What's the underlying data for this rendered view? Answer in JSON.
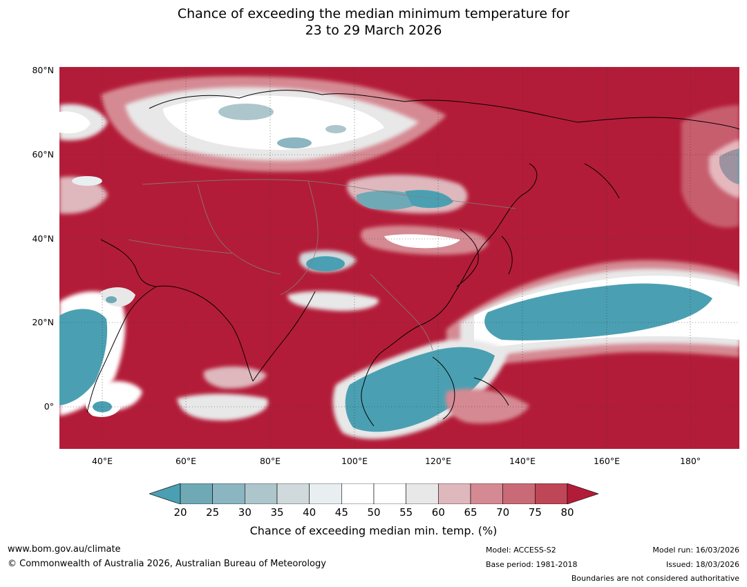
{
  "title": {
    "line1": "Chance of exceeding the median minimum temperature for",
    "line2": "23 to 29 March 2026"
  },
  "map": {
    "latitude_labels": [
      "80°N",
      "60°N",
      "40°N",
      "20°N",
      "0°"
    ],
    "longitude_labels": [
      "40°E",
      "60°E",
      "80°E",
      "100°E",
      "120°E",
      "140°E",
      "160°E",
      "180°"
    ],
    "colors": {
      "above": "#b31c38",
      "below": "#4aa0b2",
      "neutral": "#ffffff"
    }
  },
  "colorbar": {
    "ticks": [
      "20",
      "25",
      "30",
      "35",
      "40",
      "45",
      "50",
      "55",
      "60",
      "65",
      "70",
      "75",
      "80"
    ],
    "colors": [
      "#4aa0b2",
      "#6fa9b6",
      "#8ab5c1",
      "#adc6cc",
      "#d0d9dc",
      "#e9eff1",
      "#ffffff",
      "#ffffff",
      "#e8e8e8",
      "#deb8bd",
      "#d58a93",
      "#c96a76",
      "#bf4656",
      "#b31c38"
    ],
    "label": "Chance of exceeding median min. temp. (%)"
  },
  "footer": {
    "website": "www.bom.gov.au/climate",
    "copyright": "© Commonwealth of Australia 2026, Australian Bureau of Meteorology",
    "model": "Model: ACCESS-S2",
    "base_period": "Base period: 1981-2018",
    "model_run": "Model run: 16/03/2026",
    "issued": "Issued: 18/03/2026",
    "disclaimer": "Boundaries are not considered authoritative"
  }
}
